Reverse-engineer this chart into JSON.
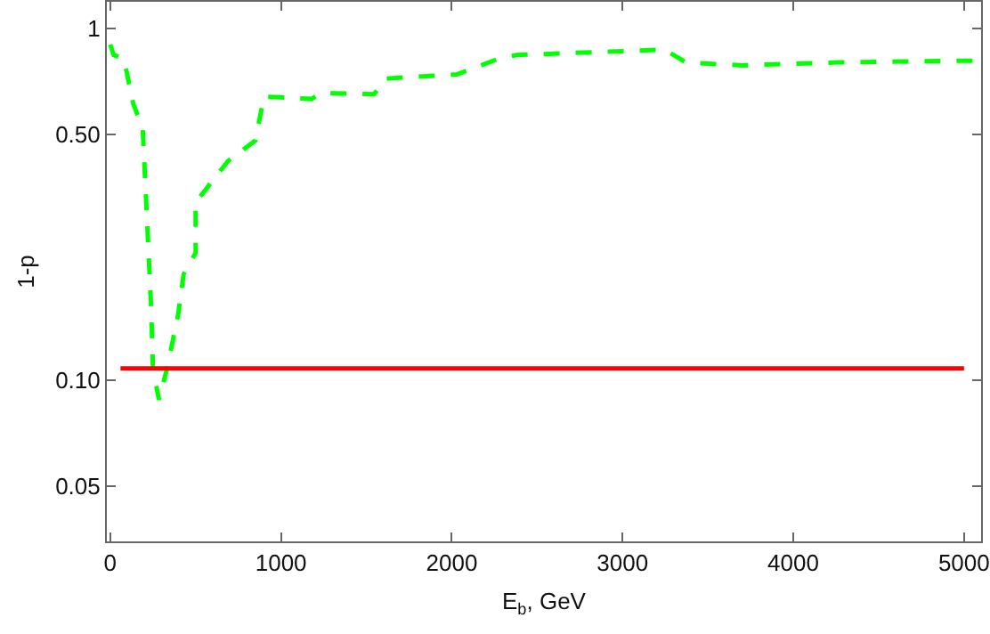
{
  "chart_data": {
    "type": "line",
    "xlabel": "E$_{b}$, GeV",
    "ylabel": "1-p",
    "log": "y",
    "xlim": [
      -20,
      5100
    ],
    "ylim": [
      0.0348,
      1.19
    ],
    "xticks": [
      0,
      1000,
      2000,
      3000,
      4000,
      5000
    ],
    "yticks": [
      0.05,
      {
        "value": 0.1,
        "label": "0.10"
      },
      {
        "value": 0.5,
        "label": "0.50"
      },
      1
    ],
    "marker": "none",
    "series": [
      {
        "color": "#00ff00",
        "line_style": "dashed",
        "x": [
          0,
          20,
          80,
          135,
          190,
          240,
          250,
          285,
          333,
          397,
          430,
          500,
          500,
          690,
          850,
          900,
          1180,
          1230,
          1545,
          1615,
          2030,
          2275,
          2380,
          3247,
          3372,
          3700,
          4260,
          5100
        ],
        "values": [
          0.9,
          0.84,
          0.82,
          0.61,
          0.52,
          0.16,
          0.108,
          0.088,
          0.108,
          0.153,
          0.2,
          0.23,
          0.32,
          0.42,
          0.48,
          0.64,
          0.63,
          0.655,
          0.65,
          0.72,
          0.74,
          0.82,
          0.84,
          0.87,
          0.8,
          0.785,
          0.8,
          0.81
        ]
      },
      {
        "color": "#ff0000",
        "line_style": "solid",
        "x": [
          60,
          5000
        ],
        "values": [
          0.108,
          0.108
        ]
      }
    ]
  }
}
